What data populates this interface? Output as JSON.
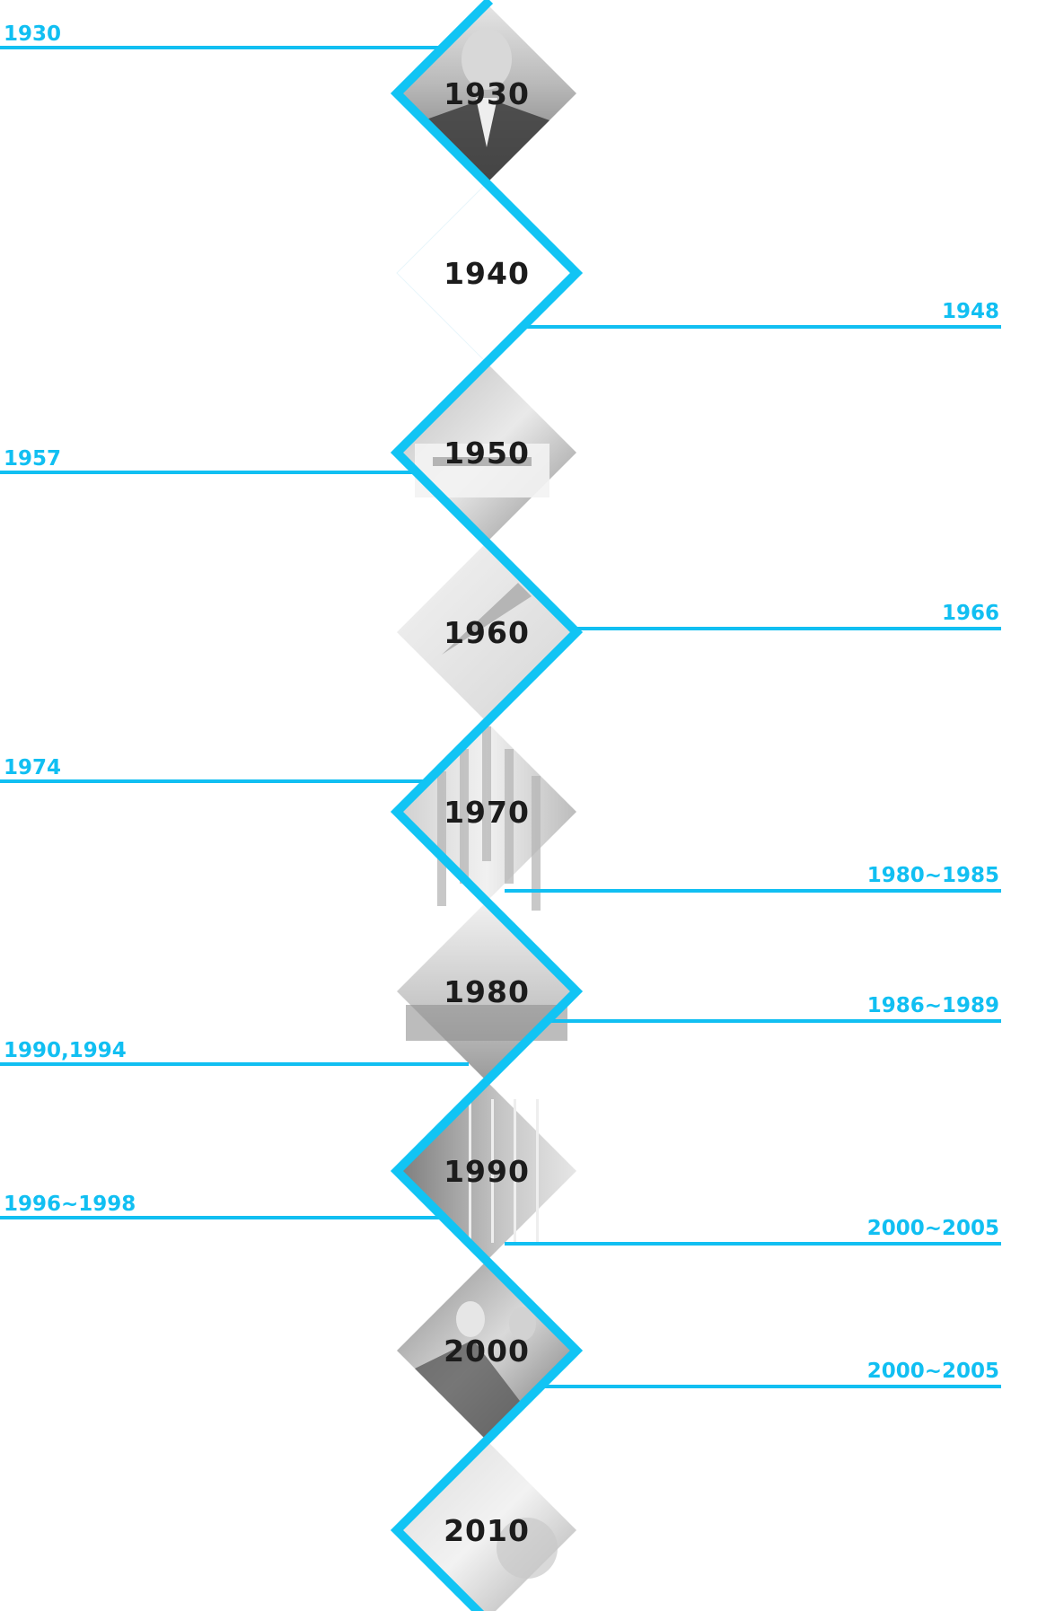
{
  "accent_color": "#11bff2",
  "decades": [
    {
      "label": "1930",
      "image": "portrait-photo"
    },
    {
      "label": "1940",
      "image": "none"
    },
    {
      "label": "1950",
      "image": "factory-building-photo"
    },
    {
      "label": "1960",
      "image": "pen-nib-photo"
    },
    {
      "label": "1970",
      "image": "pens-photo"
    },
    {
      "label": "1980",
      "image": "safari-building-photo"
    },
    {
      "label": "1990",
      "image": "glass-building-photo"
    },
    {
      "label": "2000",
      "image": "two-men-photo"
    },
    {
      "label": "2010",
      "image": "pen-closeup-photo"
    }
  ],
  "events": [
    {
      "label": "1930",
      "side": "left"
    },
    {
      "label": "1948",
      "side": "right"
    },
    {
      "label": "1957",
      "side": "left"
    },
    {
      "label": "1966",
      "side": "right"
    },
    {
      "label": "1974",
      "side": "left"
    },
    {
      "label": "1980~1985",
      "side": "right"
    },
    {
      "label": "1986~1989",
      "side": "right"
    },
    {
      "label": "1990,1994",
      "side": "left"
    },
    {
      "label": "1996~1998",
      "side": "left"
    },
    {
      "label": "2000~2005",
      "side": "right"
    },
    {
      "label": "2000~2005",
      "side": "right"
    }
  ]
}
